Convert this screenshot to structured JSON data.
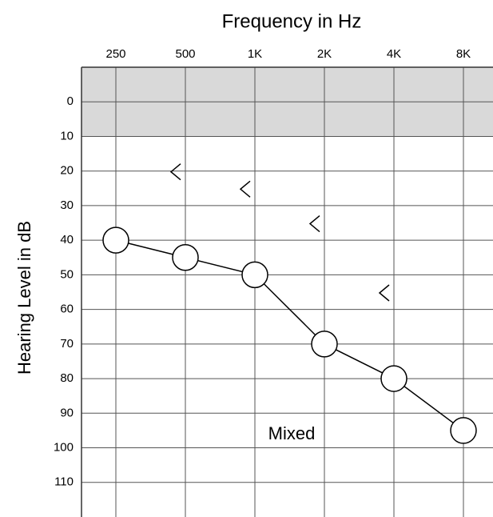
{
  "chart_data": {
    "type": "line",
    "title": "Frequency in Hz",
    "y_label": "Hearing Level in dB",
    "annotation": "Mixed",
    "categories": [
      "250",
      "500",
      "1K",
      "2K",
      "4K",
      "8K"
    ],
    "series": [
      {
        "color": "#000000",
        "marker": "circle",
        "line": true,
        "values": [
          40,
          45,
          50,
          70,
          80,
          95
        ]
      },
      {
        "color": "#000000",
        "marker": "<",
        "line": false,
        "values": [
          null,
          20,
          25,
          35,
          55,
          null
        ]
      }
    ],
    "ylim": [
      -10,
      120
    ],
    "inverted": true,
    "yticks": [
      0,
      10,
      20,
      30,
      40,
      50,
      60,
      70,
      80,
      90,
      100,
      110
    ],
    "shaded_range": [
      -10,
      10
    ],
    "shade_color": "#d9d9d9",
    "grid": true
  }
}
